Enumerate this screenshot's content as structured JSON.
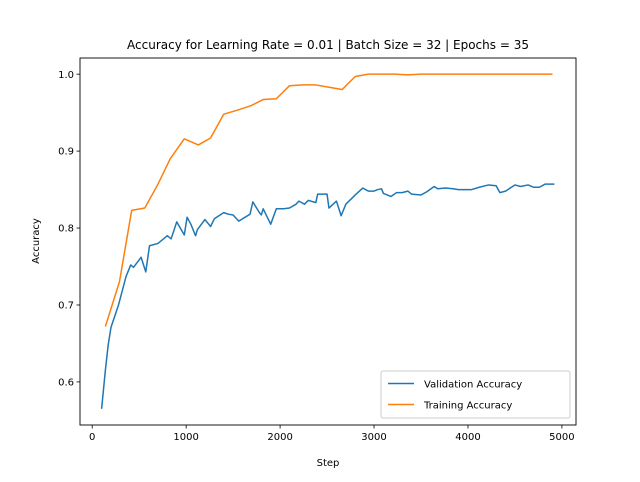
{
  "chart_data": {
    "type": "line",
    "title": "Accuracy for Learning Rate = 0.01 | Batch Size = 32 | Epochs = 35",
    "xlabel": "Step",
    "ylabel": "Accuracy",
    "xlim": [
      -130,
      5150
    ],
    "ylim": [
      0.544,
      1.021
    ],
    "xticks": [
      0,
      1000,
      2000,
      3000,
      4000,
      5000
    ],
    "yticks": [
      0.6,
      0.7,
      0.8,
      0.9,
      1.0
    ],
    "xtick_labels": [
      "0",
      "1000",
      "2000",
      "3000",
      "4000",
      "5000"
    ],
    "ytick_labels": [
      "0.6",
      "0.7",
      "0.8",
      "0.9",
      "1.0"
    ],
    "grid": false,
    "legend_position": "lower-right",
    "series": [
      {
        "name": "Validation Accuracy",
        "color": "#1f77b4",
        "x": [
          100,
          140,
          170,
          200,
          280,
          360,
          410,
          440,
          520,
          570,
          610,
          700,
          800,
          840,
          900,
          980,
          1010,
          1050,
          1100,
          1120,
          1200,
          1260,
          1300,
          1400,
          1450,
          1500,
          1560,
          1680,
          1710,
          1780,
          1800,
          1820,
          1900,
          1960,
          2040,
          2100,
          2170,
          2200,
          2260,
          2300,
          2380,
          2400,
          2500,
          2520,
          2600,
          2650,
          2700,
          2800,
          2880,
          2940,
          3000,
          3040,
          3080,
          3100,
          3180,
          3240,
          3300,
          3360,
          3400,
          3500,
          3560,
          3640,
          3680,
          3760,
          3840,
          3900,
          3960,
          4040,
          4120,
          4220,
          4300,
          4340,
          4400,
          4450,
          4500,
          4560,
          4640,
          4700,
          4760,
          4820,
          4860,
          4920
        ],
        "y": [
          0.565,
          0.615,
          0.648,
          0.671,
          0.7,
          0.737,
          0.752,
          0.749,
          0.762,
          0.743,
          0.777,
          0.78,
          0.79,
          0.786,
          0.808,
          0.791,
          0.814,
          0.805,
          0.79,
          0.798,
          0.811,
          0.802,
          0.812,
          0.82,
          0.818,
          0.817,
          0.809,
          0.818,
          0.834,
          0.82,
          0.817,
          0.825,
          0.805,
          0.825,
          0.825,
          0.826,
          0.831,
          0.835,
          0.831,
          0.836,
          0.833,
          0.844,
          0.844,
          0.826,
          0.835,
          0.816,
          0.831,
          0.843,
          0.852,
          0.848,
          0.848,
          0.85,
          0.851,
          0.845,
          0.841,
          0.846,
          0.846,
          0.848,
          0.844,
          0.843,
          0.847,
          0.854,
          0.851,
          0.852,
          0.851,
          0.85,
          0.85,
          0.85,
          0.853,
          0.856,
          0.855,
          0.846,
          0.848,
          0.852,
          0.856,
          0.854,
          0.856,
          0.853,
          0.853,
          0.857,
          0.857,
          0.857
        ]
      },
      {
        "name": "Training Accuracy",
        "color": "#ff7f0e",
        "x": [
          140,
          290,
          420,
          560,
          700,
          830,
          980,
          1130,
          1260,
          1400,
          1540,
          1690,
          1820,
          1960,
          2100,
          2240,
          2380,
          2520,
          2660,
          2800,
          2940,
          3080,
          3220,
          3360,
          3500,
          3640,
          3780,
          3920,
          4060,
          4200,
          4340,
          4480,
          4620,
          4760,
          4900
        ],
        "y": [
          0.672,
          0.73,
          0.823,
          0.826,
          0.857,
          0.89,
          0.916,
          0.908,
          0.917,
          0.948,
          0.953,
          0.959,
          0.967,
          0.968,
          0.985,
          0.986,
          0.986,
          0.983,
          0.98,
          0.997,
          1.0,
          1.0,
          1.0,
          0.999,
          1.0,
          1.0,
          1.0,
          1.0,
          1.0,
          1.0,
          1.0,
          1.0,
          1.0,
          1.0,
          1.0
        ]
      }
    ]
  }
}
